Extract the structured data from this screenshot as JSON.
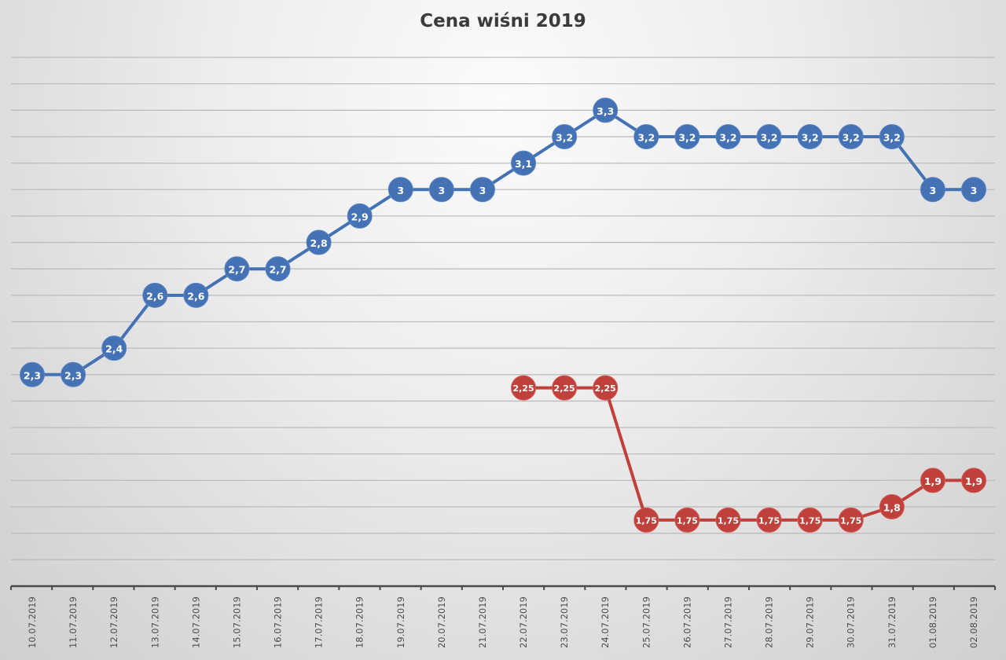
{
  "chart_data": {
    "type": "line",
    "title": "Cena wiśni 2019",
    "xlabel": "",
    "ylabel": "",
    "ylim": [
      1.5,
      3.5
    ],
    "grid": true,
    "gridline_step": 0.1,
    "legend": null,
    "categories": [
      "10.07.2019",
      "11.07.2019",
      "12.07.2019",
      "13.07.2019",
      "14.07.2019",
      "15.07.2019",
      "16.07.2019",
      "17.07.2019",
      "18.07.2019",
      "19.07.2019",
      "20.07.2019",
      "21.07.2019",
      "22.07.2019",
      "23.07.2019",
      "24.07.2019",
      "25.07.2019",
      "26.07.2019",
      "27.07.2019",
      "28.07.2019",
      "29.07.2019",
      "30.07.2019",
      "31.07.2019",
      "01.08.2019",
      "02.08.2019"
    ],
    "series": [
      {
        "name": "series-blue",
        "color": "#4472B4",
        "values": [
          2.3,
          2.3,
          2.4,
          2.6,
          2.6,
          2.7,
          2.7,
          2.8,
          2.9,
          3,
          3,
          3,
          3.1,
          3.2,
          3.3,
          3.2,
          3.2,
          3.2,
          3.2,
          3.2,
          3.2,
          3.2,
          3,
          3
        ],
        "labels": [
          "2,3",
          "2,3",
          "2,4",
          "2,6",
          "2,6",
          "2,7",
          "2,7",
          "2,8",
          "2,9",
          "3",
          "3",
          "3",
          "3,1",
          "3,2",
          "3,3",
          "3,2",
          "3,2",
          "3,2",
          "3,2",
          "3,2",
          "3,2",
          "3,2",
          "3",
          "3"
        ]
      },
      {
        "name": "series-red",
        "color": "#C0403C",
        "values": [
          null,
          null,
          null,
          null,
          null,
          null,
          null,
          null,
          null,
          null,
          null,
          null,
          2.25,
          2.25,
          2.25,
          1.75,
          1.75,
          1.75,
          1.75,
          1.75,
          1.75,
          1.8,
          1.9,
          1.9
        ],
        "labels": [
          null,
          null,
          null,
          null,
          null,
          null,
          null,
          null,
          null,
          null,
          null,
          null,
          "2,25",
          "2,25",
          "2,25",
          "1,75",
          "1,75",
          "1,75",
          "1,75",
          "1,75",
          "1,75",
          "1,8",
          "1,9",
          "1,9"
        ]
      }
    ]
  }
}
